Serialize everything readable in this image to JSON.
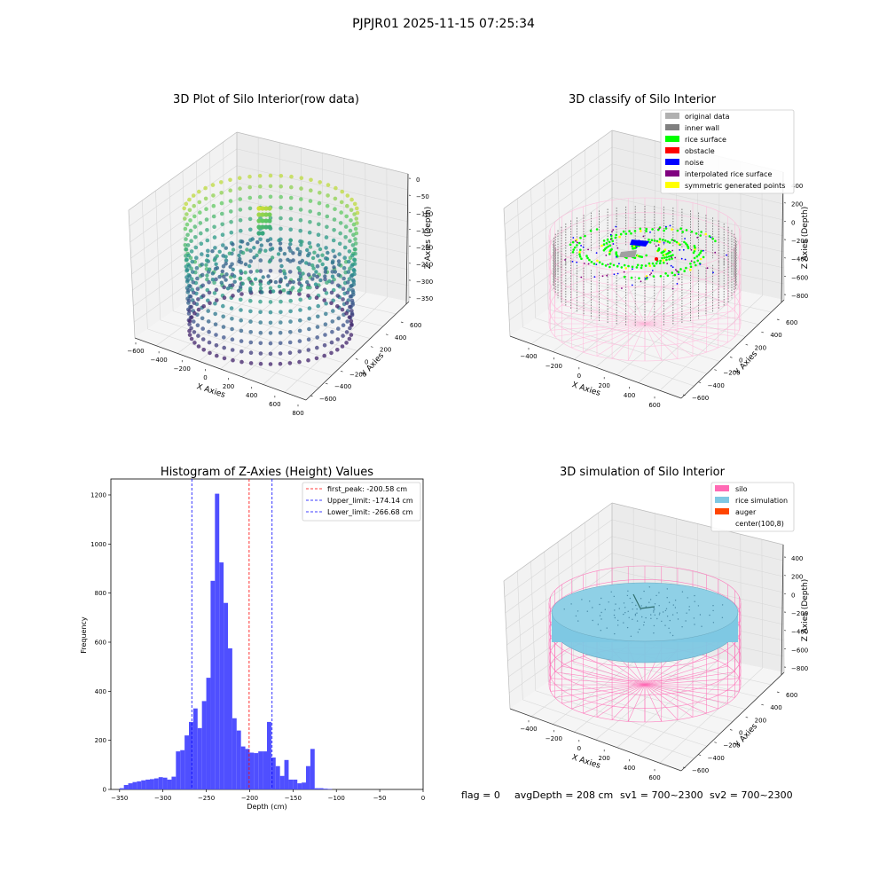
{
  "suptitle": "PJPJR01 2025-11-15 07:25:34",
  "footer": {
    "flag": "flag = 0",
    "avg_depth": "avgDepth = 208 cm",
    "sv1": "sv1 = 700~2300",
    "sv2": "sv2 = 700~2300"
  },
  "colors": {
    "histogram_bar": "#4b4bff",
    "peak_line": "#ff0000",
    "limit_line": "#0000ff",
    "silo": "#ff69b4",
    "rice_simulation": "#7ec8e3",
    "auger": "#ff4500",
    "rice_surface": "#00ff00",
    "inner_wall": "#808080",
    "original_data": "#b0b0b0",
    "obstacle": "#ff0000",
    "noise": "#0000ff",
    "interpolated": "#800080",
    "symmetric": "#ffff00"
  },
  "chart_data": [
    {
      "type": "scatter",
      "subtype": "3d",
      "title": "3D Plot of Silo Interior(row data)",
      "xlabel": "X Axies",
      "ylabel": "Y Axies",
      "zlabel": "Z Axies (Depth)",
      "x_ticks": [
        "−600",
        "−400",
        "−200",
        "0",
        "200",
        "400",
        "600",
        "800"
      ],
      "y_ticks": [
        "−600",
        "−400",
        "−200",
        "0",
        "200",
        "400",
        "600"
      ],
      "z_ticks": [
        "0",
        "−50",
        "−100",
        "−150",
        "−200",
        "−250",
        "−300",
        "−350"
      ],
      "xlim": [
        -600,
        800
      ],
      "ylim": [
        -600,
        600
      ],
      "zlim": [
        -350,
        0
      ],
      "colormap": "viridis"
    },
    {
      "type": "scatter",
      "subtype": "3d",
      "title": "3D classify of Silo Interior",
      "xlabel": "X Axies",
      "ylabel": "Y Axies",
      "zlabel": "Z Axies (Depth)",
      "x_ticks": [
        "−400",
        "−200",
        "0",
        "200",
        "400",
        "600"
      ],
      "y_ticks": [
        "−600",
        "−400",
        "−200",
        "0",
        "200",
        "400",
        "600"
      ],
      "z_ticks": [
        "400",
        "200",
        "0",
        "−200",
        "−400",
        "−600",
        "−800"
      ],
      "z_tick_partial": "00",
      "xlim": [
        -400,
        600
      ],
      "ylim": [
        -600,
        600
      ],
      "zlim": [
        -800,
        400
      ],
      "legend_position": "top-right",
      "legend": [
        {
          "label": "original data",
          "color": "#b0b0b0"
        },
        {
          "label": "inner wall",
          "color": "#808080"
        },
        {
          "label": "rice surface",
          "color": "#00ff00"
        },
        {
          "label": "obstacle",
          "color": "#ff0000"
        },
        {
          "label": "noise",
          "color": "#0000ff"
        },
        {
          "label": "interpolated rice surface",
          "color": "#800080"
        },
        {
          "label": "symmetric generated points",
          "color": "#ffff00"
        }
      ]
    },
    {
      "type": "bar",
      "subtype": "histogram",
      "title": "Histogram of Z-Axies (Height) Values",
      "xlabel": "Depth (cm)",
      "ylabel": "Frequency",
      "xlim": [
        -360,
        0
      ],
      "ylim": [
        0,
        1265
      ],
      "x_ticks": [
        -350,
        -300,
        -250,
        -200,
        -150,
        -100,
        -50,
        0
      ],
      "x_tick_labels": [
        "−350",
        "−300",
        "−250",
        "−200",
        "−150",
        "−100",
        "−50",
        "0"
      ],
      "y_ticks": [
        0,
        200,
        400,
        600,
        800,
        1000,
        1200
      ],
      "bin_start": -350,
      "bin_width": 5,
      "values": [
        5,
        18,
        25,
        30,
        33,
        37,
        40,
        42,
        45,
        50,
        48,
        40,
        52,
        155,
        160,
        220,
        275,
        330,
        250,
        360,
        455,
        850,
        1205,
        925,
        760,
        575,
        290,
        240,
        175,
        165,
        150,
        148,
        155,
        155,
        275,
        130,
        95,
        55,
        120,
        40,
        40,
        25,
        28,
        95,
        165,
        5,
        5,
        3,
        2
      ],
      "vlines": [
        {
          "x": -200.58,
          "label": "first_peak: -200.58 cm",
          "color": "#ff0000"
        },
        {
          "x": -174.14,
          "label": "Upper_limit: -174.14 cm",
          "color": "#0000ff"
        },
        {
          "x": -266.68,
          "label": "Lower_limit: -266.68 cm",
          "color": "#0000ff"
        }
      ],
      "legend_position": "top-right"
    },
    {
      "type": "scatter",
      "subtype": "3d",
      "title": "3D simulation of Silo Interior",
      "xlabel": "X Axies",
      "ylabel": "Y Axies",
      "zlabel": "Z Axies (Depth)",
      "x_ticks": [
        "−400",
        "−200",
        "0",
        "200",
        "400",
        "600"
      ],
      "y_ticks": [
        "−600",
        "−400",
        "−200",
        "0",
        "200",
        "400",
        "600"
      ],
      "z_ticks": [
        "400",
        "200",
        "0",
        "−200",
        "−400",
        "−600",
        "−800"
      ],
      "xlim": [
        -400,
        600
      ],
      "ylim": [
        -600,
        600
      ],
      "zlim": [
        -800,
        400
      ],
      "legend_position": "top-right",
      "legend": [
        {
          "label": "silo",
          "color": "#ff69b4"
        },
        {
          "label": "rice simulation",
          "color": "#7ec8e3"
        },
        {
          "label": "auger",
          "color": "#ff4500"
        },
        {
          "label": "center(100,8)",
          "color": ""
        }
      ]
    }
  ]
}
